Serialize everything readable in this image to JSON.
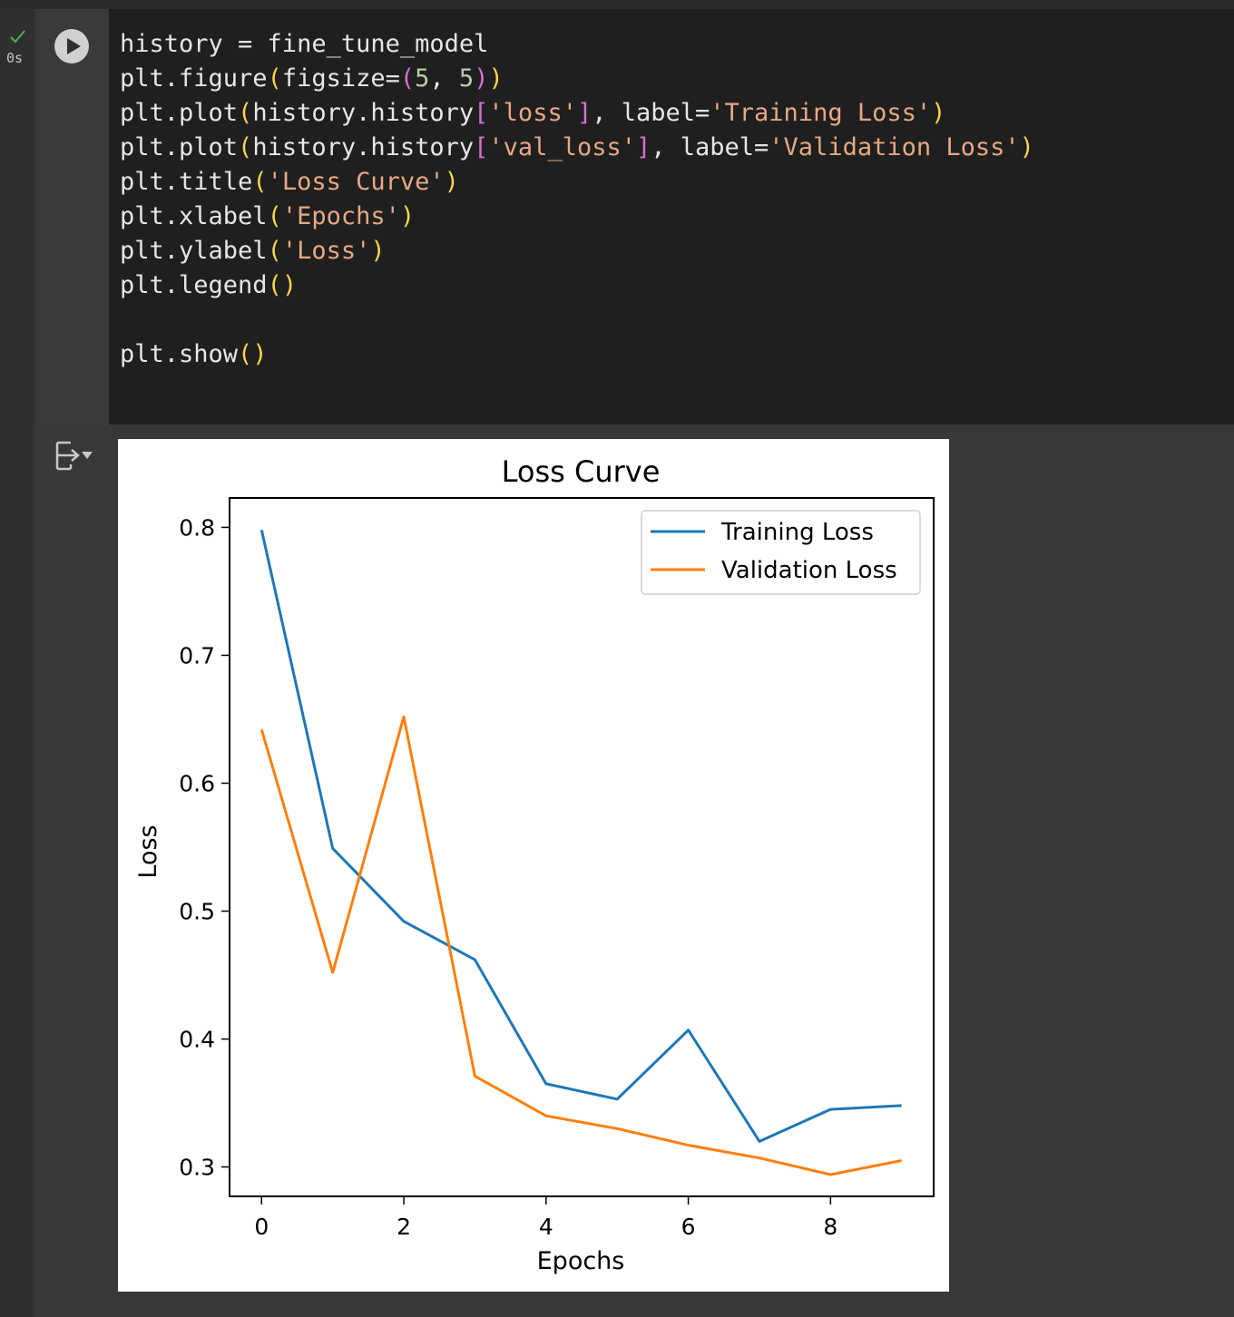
{
  "cell": {
    "status_icon": "checkmark-icon",
    "exec_time": "0s",
    "run_icon": "play-icon",
    "code_lines": [
      [
        {
          "t": "history = fine_tune_model"
        }
      ],
      [
        {
          "t": "plt.figure"
        },
        {
          "t": "(",
          "c": "c-brk1"
        },
        {
          "t": "figsize="
        },
        {
          "t": "(",
          "c": "c-brk2"
        },
        {
          "t": "5",
          "c": "c-num"
        },
        {
          "t": ", "
        },
        {
          "t": "5",
          "c": "c-num"
        },
        {
          "t": ")",
          "c": "c-brk2"
        },
        {
          "t": ")",
          "c": "c-brk1"
        }
      ],
      [
        {
          "t": "plt.plot"
        },
        {
          "t": "(",
          "c": "c-brk1"
        },
        {
          "t": "history.history"
        },
        {
          "t": "[",
          "c": "c-brk2"
        },
        {
          "t": "'loss'",
          "c": "c-str"
        },
        {
          "t": "]",
          "c": "c-brk2"
        },
        {
          "t": ", label="
        },
        {
          "t": "'Training Loss'",
          "c": "c-str"
        },
        {
          "t": ")",
          "c": "c-brk1"
        }
      ],
      [
        {
          "t": "plt.plot"
        },
        {
          "t": "(",
          "c": "c-brk1"
        },
        {
          "t": "history.history"
        },
        {
          "t": "[",
          "c": "c-brk2"
        },
        {
          "t": "'val_loss'",
          "c": "c-str"
        },
        {
          "t": "]",
          "c": "c-brk2"
        },
        {
          "t": ", label="
        },
        {
          "t": "'Validation Loss'",
          "c": "c-str"
        },
        {
          "t": ")",
          "c": "c-brk1"
        }
      ],
      [
        {
          "t": "plt.title"
        },
        {
          "t": "(",
          "c": "c-brk1"
        },
        {
          "t": "'Loss Curve'",
          "c": "c-str"
        },
        {
          "t": ")",
          "c": "c-brk1"
        }
      ],
      [
        {
          "t": "plt.xlabel"
        },
        {
          "t": "(",
          "c": "c-brk1"
        },
        {
          "t": "'Epochs'",
          "c": "c-str"
        },
        {
          "t": ")",
          "c": "c-brk1"
        }
      ],
      [
        {
          "t": "plt.ylabel"
        },
        {
          "t": "(",
          "c": "c-brk1"
        },
        {
          "t": "'Loss'",
          "c": "c-str"
        },
        {
          "t": ")",
          "c": "c-brk1"
        }
      ],
      [
        {
          "t": "plt.legend"
        },
        {
          "t": "()",
          "c": "c-brk1"
        }
      ],
      [],
      [
        {
          "t": "plt.show"
        },
        {
          "t": "()",
          "c": "c-brk1"
        }
      ]
    ]
  },
  "output": {
    "toggle_icon": "output-collapse-icon"
  },
  "chart_data": {
    "type": "line",
    "title": "Loss Curve",
    "xlabel": "Epochs",
    "ylabel": "Loss",
    "x": [
      0,
      1,
      2,
      3,
      4,
      5,
      6,
      7,
      8,
      9
    ],
    "series": [
      {
        "name": "Training Loss",
        "color": "#1f77b4",
        "values": [
          0.798,
          0.549,
          0.492,
          0.462,
          0.365,
          0.353,
          0.407,
          0.32,
          0.345,
          0.348
        ]
      },
      {
        "name": "Validation Loss",
        "color": "#ff7f0e",
        "values": [
          0.642,
          0.452,
          0.652,
          0.371,
          0.34,
          0.33,
          0.317,
          0.307,
          0.294,
          0.305
        ]
      }
    ],
    "xlim": [
      -0.45,
      9.45
    ],
    "ylim": [
      0.277,
      0.823
    ],
    "xticks": [
      0,
      2,
      4,
      6,
      8
    ],
    "yticks": [
      0.3,
      0.4,
      0.5,
      0.6,
      0.7,
      0.8
    ],
    "ytick_labels": [
      "0.3",
      "0.4",
      "0.5",
      "0.6",
      "0.7",
      "0.8"
    ],
    "grid": false,
    "legend": "upper right"
  }
}
